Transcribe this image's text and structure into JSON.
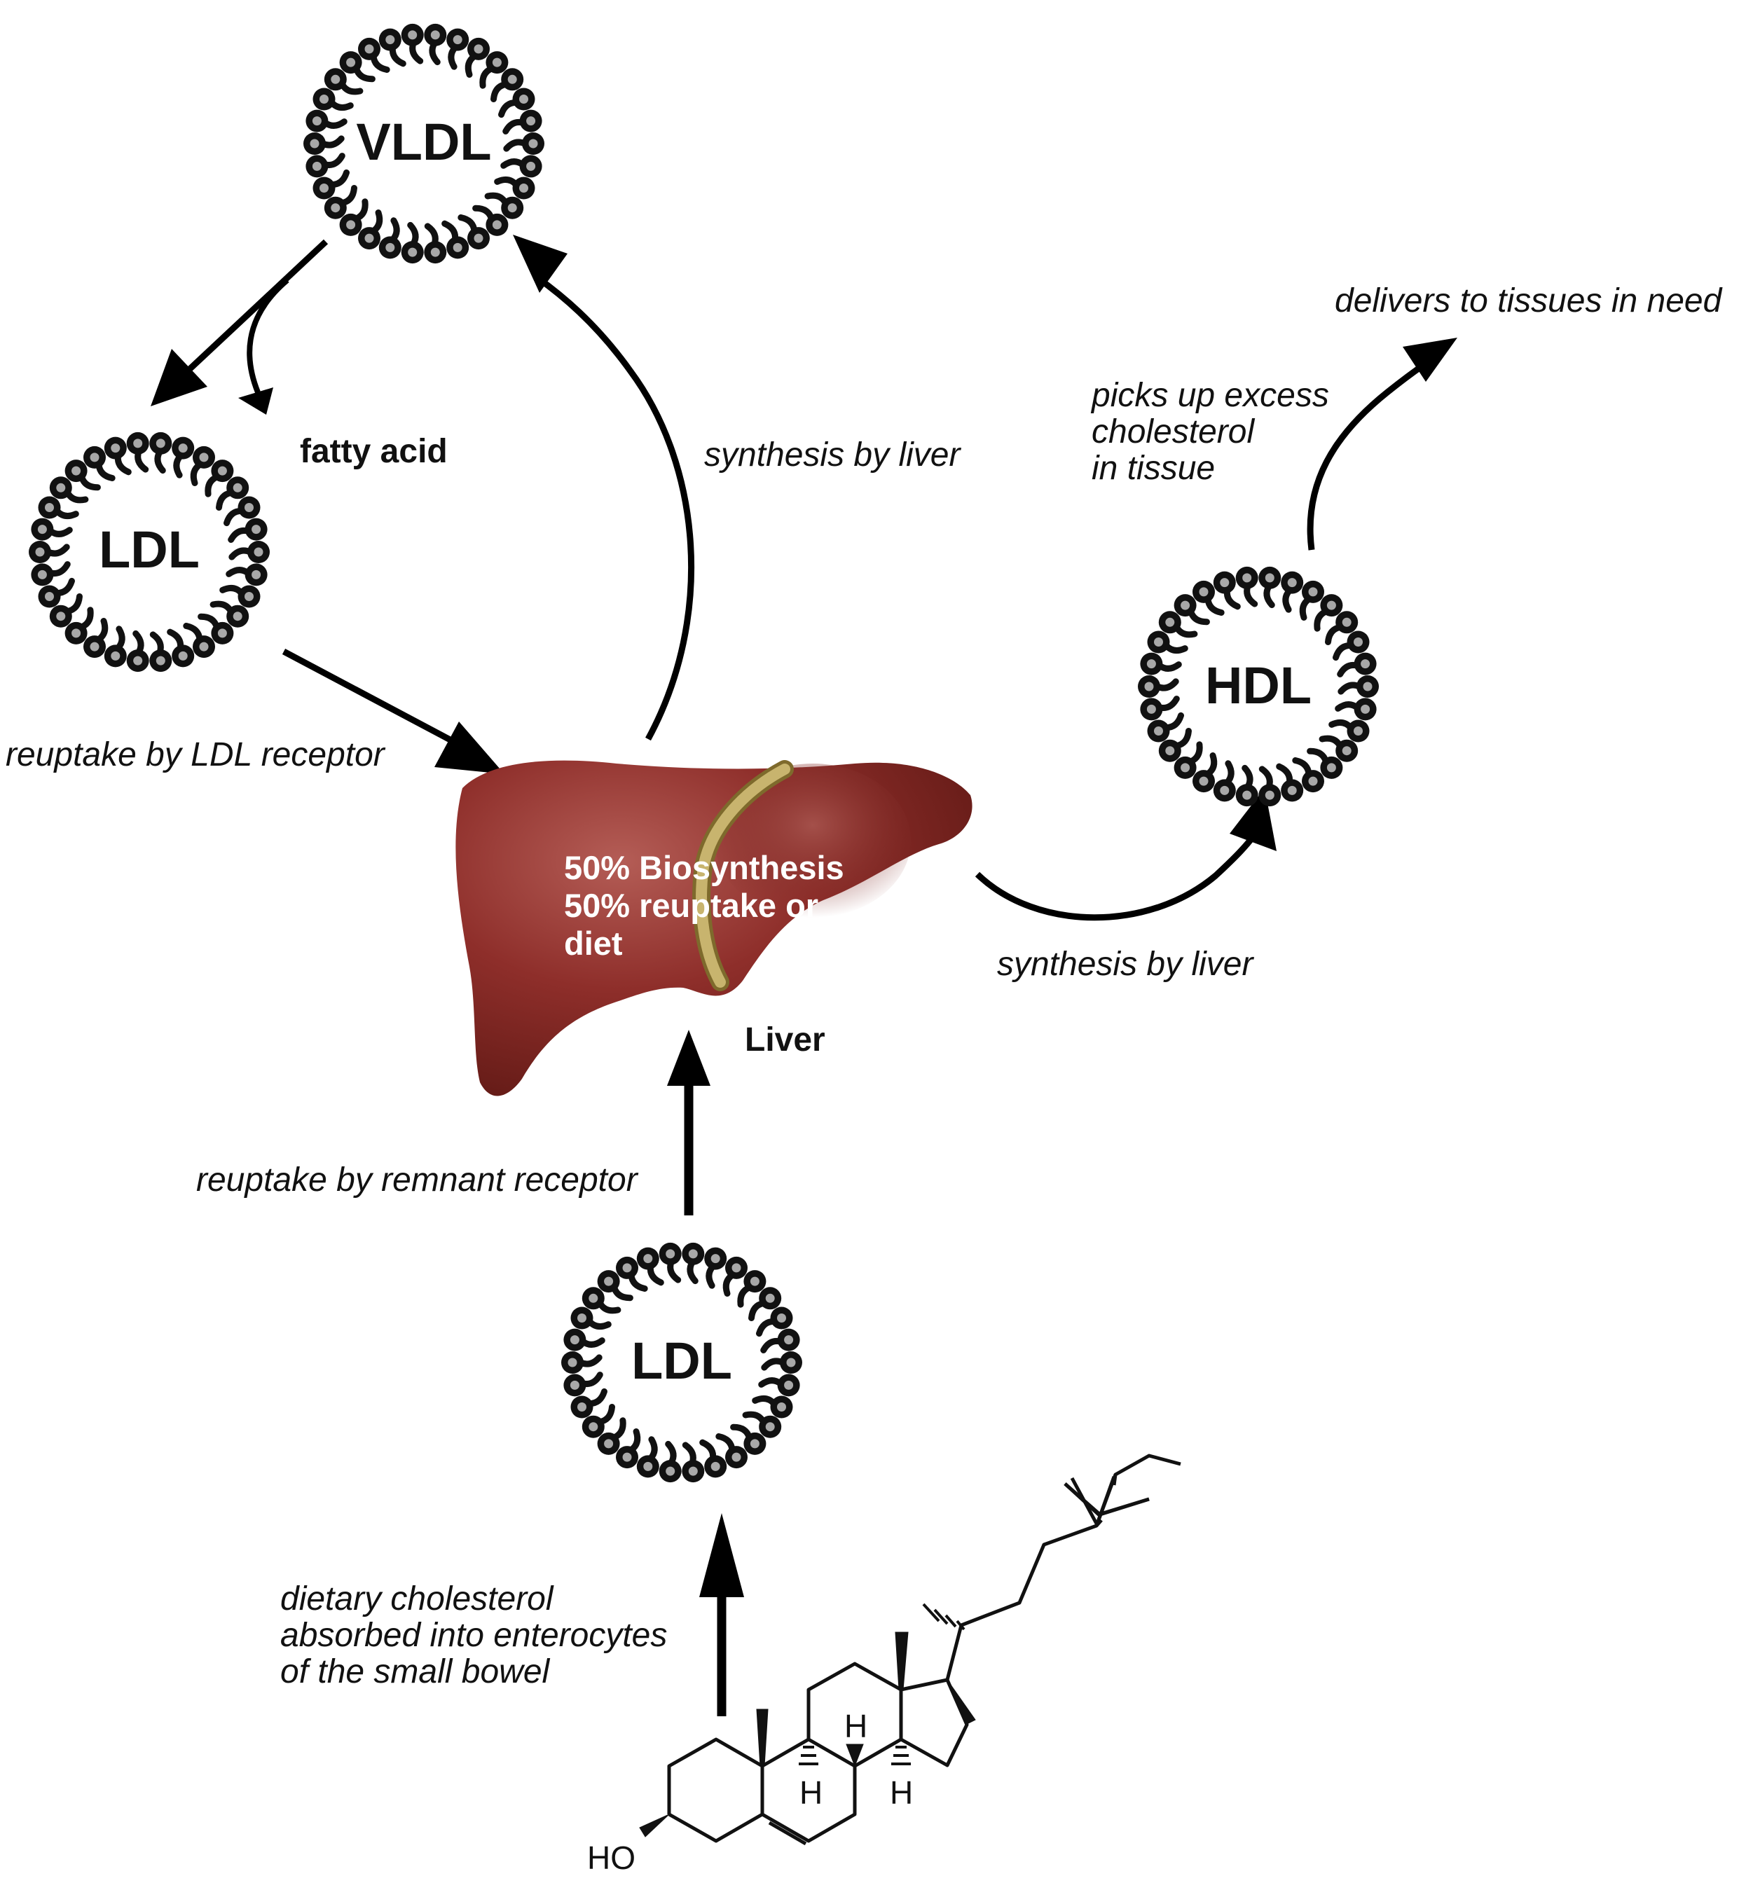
{
  "diagram": {
    "lipoproteins": {
      "vldl": "VLDL",
      "ldl_left": "LDL",
      "hdl": "HDL",
      "ldl_bottom": "LDL"
    },
    "labels": {
      "fatty_acid": "fatty acid",
      "synthesis_vldl": "synthesis by liver",
      "reuptake_ldl_receptor": "reuptake by LDL receptor",
      "synthesis_hdl": "synthesis by liver",
      "reuptake_remnant": "reuptake by remnant receptor",
      "picks_up": [
        "picks up excess",
        "cholesterol",
        "in tissue"
      ],
      "delivers": "delivers to tissues in need",
      "dietary": [
        "dietary cholesterol",
        "absorbed into enterocytes",
        "of the small bowel"
      ]
    },
    "liver": {
      "text": [
        "50% Biosynthesis",
        "50% reuptake or",
        "diet"
      ],
      "label": "Liver",
      "color": "#8a2a26",
      "band_color": "#c8b46e"
    },
    "cholesterol": {
      "ho": "HO",
      "h_labels": [
        "H",
        "H",
        "H"
      ]
    },
    "colors": {
      "bead": "#111111",
      "bead_dot": "#a8a8a8",
      "arrow": "#000000"
    }
  }
}
